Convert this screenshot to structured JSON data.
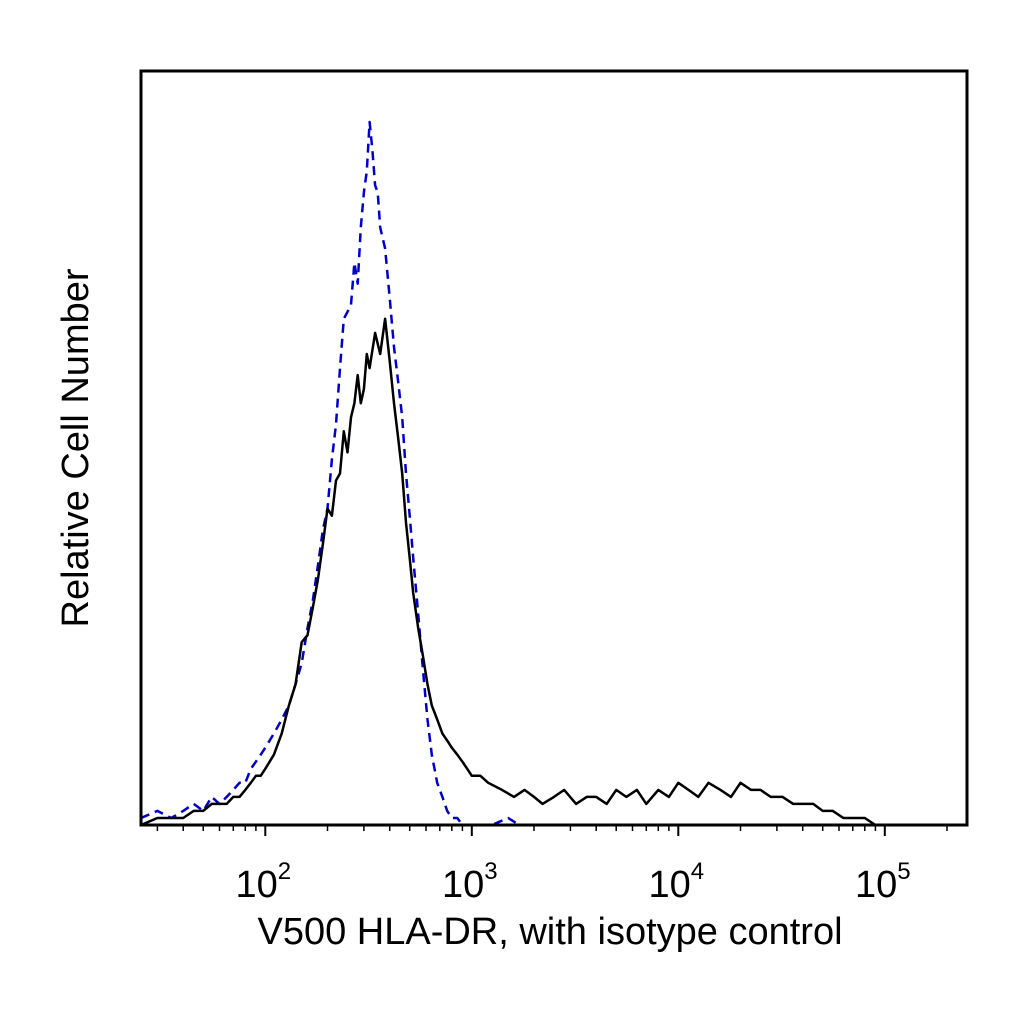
{
  "chart_data": {
    "type": "line",
    "title": "",
    "xlabel": "V500 HLA-DR, with isotype control",
    "ylabel": "Relative Cell Number",
    "xscale": "log",
    "xlim": [
      25,
      250000
    ],
    "ylim": [
      0,
      100
    ],
    "x_ticks": [
      {
        "base": "10",
        "exp": "2",
        "value": 100
      },
      {
        "base": "10",
        "exp": "3",
        "value": 1000
      },
      {
        "base": "10",
        "exp": "4",
        "value": 10000
      },
      {
        "base": "10",
        "exp": "5",
        "value": 100000
      }
    ],
    "grid": false,
    "legend": "none",
    "series": [
      {
        "color": "#0000cc",
        "style": "dashed",
        "x": [
          25,
          30,
          35,
          40,
          45,
          50,
          55,
          60,
          65,
          70,
          75,
          80,
          85,
          90,
          95,
          100,
          110,
          120,
          130,
          140,
          150,
          160,
          170,
          180,
          190,
          200,
          210,
          220,
          230,
          240,
          250,
          260,
          270,
          280,
          290,
          300,
          310,
          320,
          330,
          340,
          350,
          360,
          380,
          400,
          420,
          440,
          460,
          480,
          500,
          520,
          550,
          580,
          610,
          640,
          680,
          720,
          760,
          800,
          850,
          900,
          950,
          1000,
          1100,
          1250,
          1500,
          1700
        ],
        "y": [
          1,
          2,
          1,
          2,
          3,
          2,
          4,
          3,
          4,
          5,
          6,
          6,
          8,
          9,
          10,
          11,
          13,
          15,
          17,
          20,
          23,
          28,
          32,
          37,
          42,
          45,
          52,
          57,
          65,
          72,
          73,
          74,
          80,
          77,
          85,
          90,
          93,
          100,
          96,
          91,
          90,
          85,
          82,
          75,
          68,
          63,
          58,
          50,
          44,
          38,
          30,
          22,
          15,
          10,
          6,
          4,
          2,
          1,
          1,
          0,
          0,
          0,
          0,
          0,
          1,
          0
        ]
      },
      {
        "color": "#000000",
        "style": "solid",
        "x": [
          25,
          30,
          35,
          40,
          45,
          50,
          55,
          60,
          65,
          70,
          75,
          80,
          85,
          90,
          95,
          100,
          110,
          120,
          130,
          140,
          150,
          160,
          170,
          180,
          190,
          200,
          210,
          220,
          230,
          240,
          250,
          260,
          270,
          280,
          290,
          300,
          310,
          320,
          340,
          360,
          380,
          400,
          420,
          440,
          460,
          480,
          500,
          520,
          550,
          580,
          610,
          640,
          680,
          720,
          760,
          800,
          850,
          900,
          950,
          1000,
          1100,
          1200,
          1400,
          1600,
          1800,
          2000,
          2200,
          2500,
          2800,
          3200,
          3600,
          4000,
          4500,
          5000,
          5600,
          6300,
          7000,
          8000,
          9000,
          10000,
          11200,
          12500,
          14000,
          16000,
          18000,
          20000,
          22500,
          25000,
          28000,
          32000,
          36000,
          40000,
          45000,
          50000,
          56000,
          63000,
          70000,
          80000,
          90000
        ],
        "y": [
          0,
          1,
          1,
          1,
          2,
          2,
          3,
          3,
          3,
          4,
          4,
          5,
          6,
          7,
          7,
          8,
          10,
          13,
          17,
          20,
          26,
          27,
          31,
          35,
          40,
          45,
          44,
          49,
          50,
          56,
          53,
          58,
          60,
          64,
          60,
          62,
          67,
          65,
          70,
          67,
          72,
          66,
          60,
          55,
          50,
          43,
          38,
          33,
          28,
          24,
          20,
          17,
          15,
          13,
          12,
          11,
          10,
          9,
          8,
          7,
          7,
          6,
          5,
          4,
          5,
          4,
          3,
          4,
          5,
          3,
          4,
          4,
          3,
          5,
          4,
          5,
          3,
          5,
          4,
          6,
          5,
          4,
          6,
          5,
          4,
          6,
          5,
          5,
          4,
          4,
          3,
          3,
          3,
          2,
          2,
          1,
          1,
          1,
          0
        ]
      }
    ]
  }
}
